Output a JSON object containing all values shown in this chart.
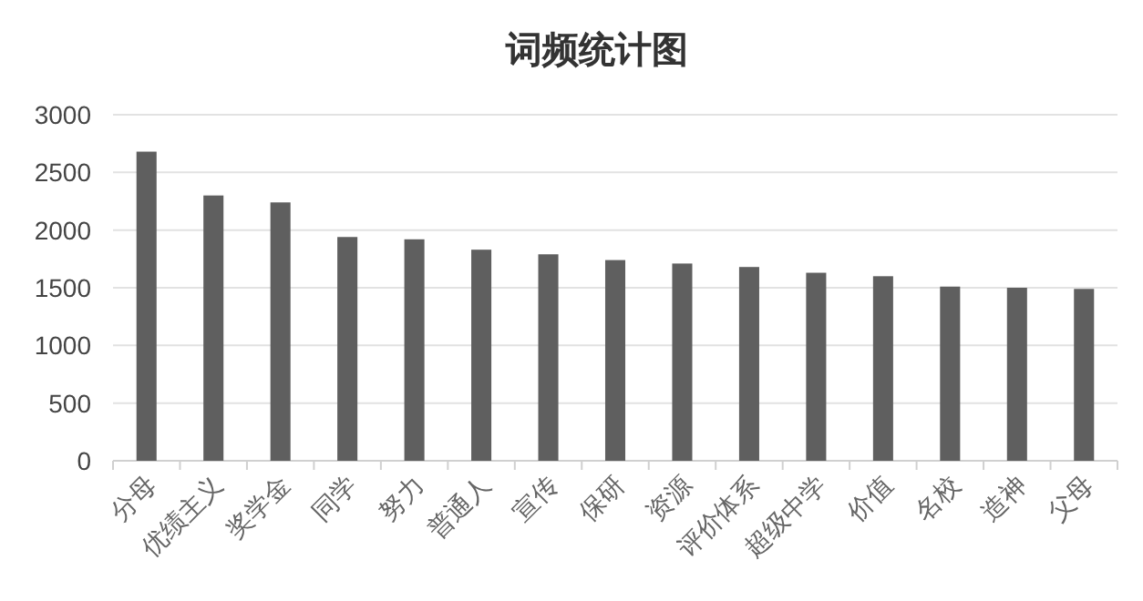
{
  "chart_data": {
    "type": "bar",
    "title": "词频统计图",
    "categories": [
      "分母",
      "优绩主义",
      "奖学金",
      "同学",
      "努力",
      "普通人",
      "宣传",
      "保研",
      "资源",
      "评价体系",
      "超级中学",
      "价值",
      "名校",
      "造神",
      "父母"
    ],
    "values": [
      2680,
      2300,
      2240,
      1940,
      1920,
      1830,
      1790,
      1740,
      1710,
      1680,
      1630,
      1600,
      1510,
      1500,
      1490
    ],
    "color": "#5f5f5f",
    "ylim": [
      0,
      3000
    ],
    "yticks": [
      0,
      500,
      1000,
      1500,
      2000,
      2500,
      3000
    ],
    "grid": "y"
  }
}
